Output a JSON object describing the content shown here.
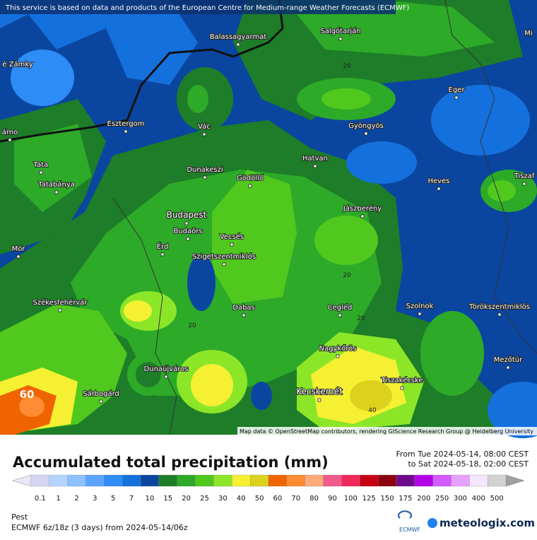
{
  "header": {
    "notice": "This service is based on data and products of the European Centre for Medium-range Weather Forecasts (ECMWF)",
    "attribution": "Map data © OpenStreetMap contributors, rendering GIScience Research Group @ Heidelberg University"
  },
  "map": {
    "cities": [
      "Balassagyarmat",
      "Salgótarján",
      "é Zámky",
      "Mi",
      "Eger",
      "Esztergom",
      "Vác",
      "Gyöngyös",
      "árno",
      "Tata",
      "Dunakeszi",
      "Gödöllő",
      "Hatvan",
      "Heves",
      "Tiszaf",
      "Tatabánya",
      "Jászberény",
      "Budapest",
      "Budaörs",
      "Vecsés",
      "Mór",
      "Érd",
      "Szigetszentmiklós",
      "Székesfehérvár",
      "Dabas",
      "Cegléd",
      "Szolnok",
      "Törökszentmiklós",
      "Nagykőrös",
      "Dunaújváros",
      "Mezőtúr",
      "Tiszakécske",
      "Sárbogárd",
      "Kecskemét"
    ],
    "contour_labels": [
      "20",
      "20",
      "20",
      "20",
      "40",
      "60"
    ]
  },
  "legend": {
    "title": "Accumulated total precipitation (mm)",
    "from": "From Tue 2024-05-14, 08:00 CEST",
    "to": "to Sat 2024-05-18, 02:00 CEST",
    "labels": [
      "0.1",
      "1",
      "2",
      "3",
      "5",
      "7",
      "10",
      "15",
      "20",
      "25",
      "30",
      "40",
      "50",
      "60",
      "70",
      "80",
      "90",
      "100",
      "125",
      "150",
      "175",
      "200",
      "250",
      "300",
      "400",
      "500"
    ],
    "colors": [
      "#e8e8f8",
      "#d6d6f4",
      "#b4d4ff",
      "#8cc0ff",
      "#5aa5ff",
      "#2d8cf5",
      "#1470dc",
      "#0a46a0",
      "#1e7d28",
      "#2daa28",
      "#50c81e",
      "#8ce628",
      "#f5f032",
      "#dcd21e",
      "#f06400",
      "#ff8c32",
      "#ffaa78",
      "#f05a8c",
      "#f0285a",
      "#c80014",
      "#8c000f",
      "#6e0a8c",
      "#b400e6",
      "#d25aff",
      "#e6a0ff",
      "#f5e6ff",
      "#d2d2d2",
      "#a0a0a0"
    ]
  },
  "footer": {
    "region": "Pest",
    "model": "ECMWF 6z/18z (3 days) from  2024-05-14/06z",
    "ecmwf": "ECMWF",
    "brand": "meteologix.com"
  }
}
